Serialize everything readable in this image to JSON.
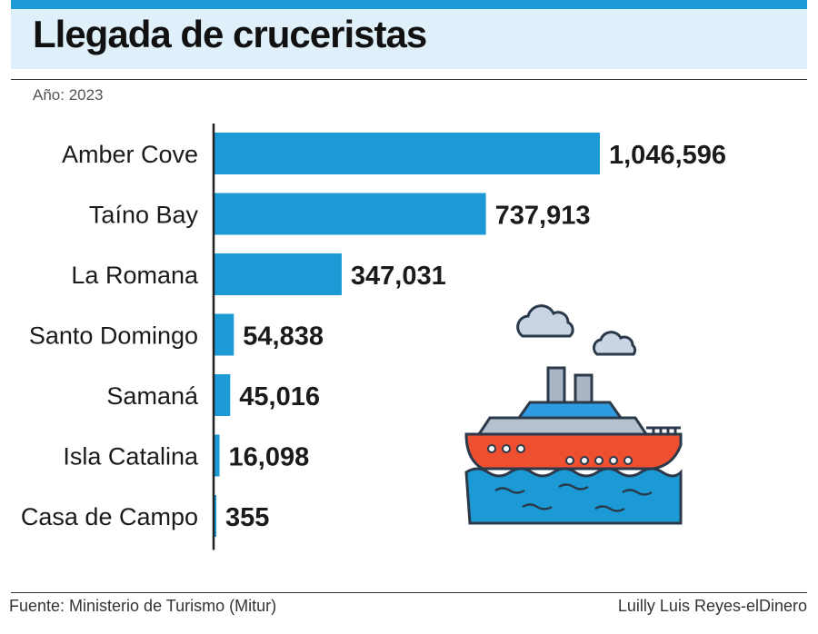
{
  "header": {
    "title": "Llegada de cruceristas",
    "subtitle": "Año: 2023"
  },
  "footer": {
    "source": "Fuente: Ministerio de Turismo (Mitur)",
    "credit": "Luilly Luis Reyes-elDinero"
  },
  "colors": {
    "bar": "#1c9ad6",
    "accent": "#1c9ad6",
    "title_band": "#dff0fa"
  },
  "illustration": {
    "icon": "cruise-ship-icon"
  },
  "chart_data": {
    "type": "bar",
    "orientation": "horizontal",
    "categories": [
      "Amber Cove",
      "Taíno Bay",
      "La Romana",
      "Santo Domingo",
      "Samaná",
      "Isla Catalina",
      "Casa de Campo"
    ],
    "values": [
      1046596,
      737913,
      347031,
      54838,
      45016,
      16098,
      355
    ],
    "value_labels": [
      "1,046,596",
      "737,913",
      "347,031",
      "54,838",
      "45,016",
      "16,098",
      "355"
    ],
    "title": "Llegada de cruceristas",
    "subtitle": "Año: 2023",
    "xlabel": "",
    "ylabel": "",
    "xlim": [
      0,
      1046596
    ],
    "grid": false,
    "legend": "none"
  }
}
